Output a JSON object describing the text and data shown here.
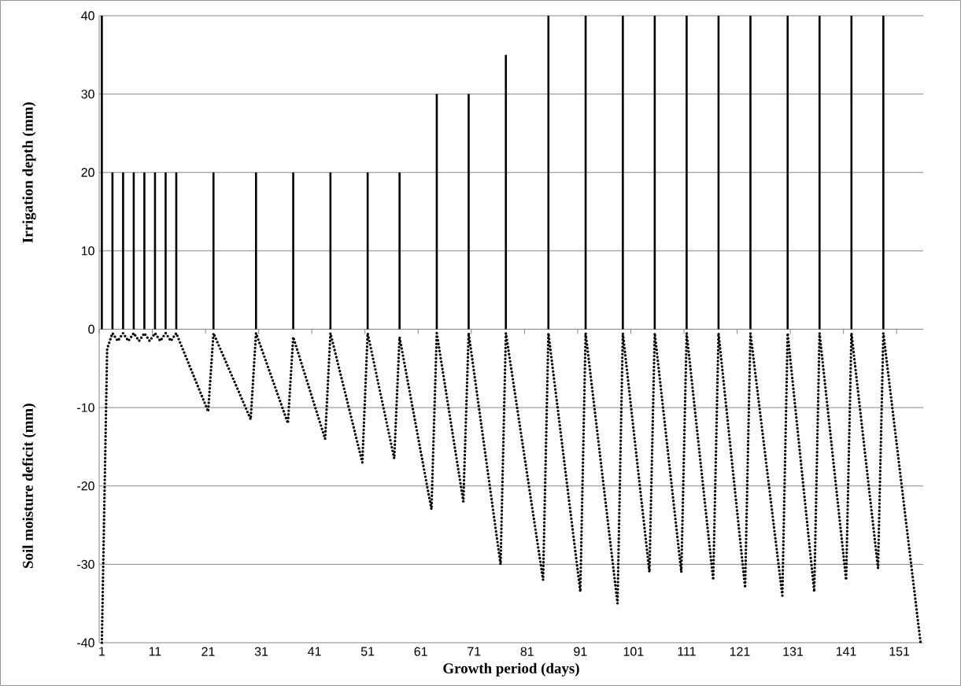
{
  "chart_data": {
    "type": "bar",
    "xlabel": "Growth period (days)",
    "ylabel": "Irrigation depth (mm)",
    "annotations": [
      "Soil moisture deficit (mm)"
    ],
    "xlim": [
      0.5,
      155.5
    ],
    "xticks": [
      1,
      11,
      21,
      31,
      41,
      51,
      61,
      71,
      81,
      91,
      101,
      111,
      121,
      131,
      141,
      151
    ],
    "ylim": [
      -40,
      40
    ],
    "yticks": [
      -40,
      -30,
      -20,
      -10,
      0,
      10,
      20,
      30,
      40
    ],
    "grid": "y",
    "series": [
      {
        "color": "#000000",
        "x": [
          1,
          3,
          5,
          7,
          9,
          11,
          13,
          15,
          22,
          30,
          37,
          44,
          51,
          57,
          64,
          70,
          77,
          85,
          92,
          99,
          105,
          111,
          117,
          123,
          130,
          136,
          142,
          148
        ],
        "values": [
          40,
          20,
          20,
          20,
          20,
          20,
          20,
          20,
          20,
          20,
          20,
          20,
          20,
          20,
          30,
          30,
          35,
          40,
          40,
          40,
          40,
          40,
          40,
          40,
          40,
          40,
          40,
          40
        ]
      },
      {
        "type": "line",
        "color": "#000000",
        "line_style": "dotted",
        "x": [
          1,
          2,
          3,
          4,
          5,
          6,
          7,
          8,
          9,
          10,
          11,
          12,
          13,
          14,
          15,
          21,
          22,
          29,
          30,
          36,
          37,
          43,
          44,
          50,
          51,
          56,
          57,
          63,
          64,
          69,
          70,
          76,
          77,
          84,
          85,
          91,
          92,
          98,
          99,
          104,
          105,
          110,
          111,
          116,
          117,
          122,
          123,
          129,
          130,
          135,
          136,
          141,
          142,
          147,
          148,
          155
        ],
        "values": [
          -40,
          -2.5,
          -0.5,
          -1.5,
          -0.5,
          -1.5,
          -0.5,
          -1.5,
          -0.5,
          -1.5,
          -0.5,
          -1.5,
          -0.5,
          -1.5,
          -0.5,
          -10.5,
          -0.5,
          -11.5,
          -0.5,
          -12,
          -1,
          -14,
          -0.5,
          -17,
          -0.5,
          -16.5,
          -1,
          -23,
          -0.5,
          -22,
          -0.5,
          -30,
          -0.5,
          -32,
          -0.5,
          -33.5,
          -0.5,
          -35,
          -0.5,
          -31,
          -0.5,
          -31,
          -0.5,
          -32,
          -0.5,
          -33,
          -0.5,
          -34,
          -0.5,
          -33.5,
          -0.5,
          -32,
          -0.5,
          -30.5,
          -0.5,
          -40
        ]
      }
    ]
  }
}
